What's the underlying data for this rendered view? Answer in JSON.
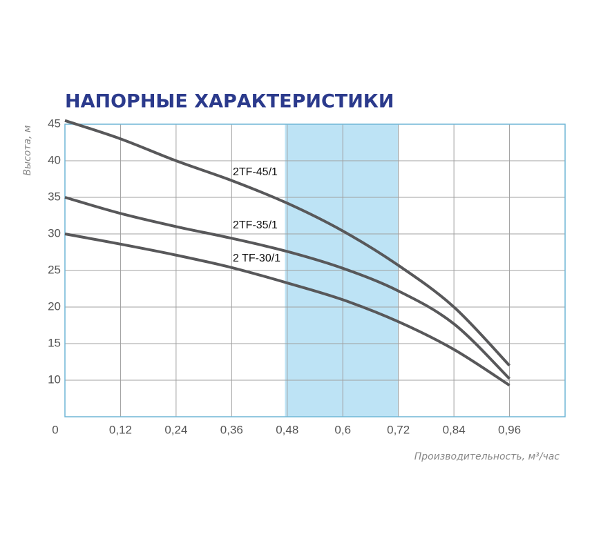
{
  "chart_data": {
    "type": "line",
    "title": "НАПОРНЫЕ ХАРАКТЕРИСТИКИ",
    "y_label": "Высота, м",
    "x_label": "Производительность, м³/час",
    "x": [
      0,
      0.12,
      0.24,
      0.36,
      0.48,
      0.6,
      0.72,
      0.84,
      0.96
    ],
    "series": [
      {
        "name": "2TF-45/1",
        "color": "#58585a",
        "values": [
          45.5,
          43,
          40,
          37.3,
          34.2,
          30.4,
          25.7,
          20,
          12
        ]
      },
      {
        "name": "2TF-35/1",
        "color": "#58585a",
        "values": [
          35,
          32.8,
          31,
          29.4,
          27.6,
          25.3,
          22.2,
          17.7,
          10.2
        ]
      },
      {
        "name": "2 TF-30/1",
        "color": "#58585a",
        "values": [
          30,
          28.6,
          27.1,
          25.4,
          23.3,
          21,
          18,
          14.2,
          9.3
        ]
      }
    ],
    "highlight_range": [
      0.475,
      0.72
    ],
    "highlight_color": "#bde3f5",
    "xlim": [
      0,
      1.08
    ],
    "ylim": [
      5,
      45
    ],
    "xticks": [
      0,
      {
        "value": 0.12,
        "label": "0,12"
      },
      {
        "value": 0.24,
        "label": "0,24"
      },
      {
        "value": 0.36,
        "label": "0,36"
      },
      {
        "value": 0.48,
        "label": "0,48"
      },
      {
        "value": 0.6,
        "label": "0,6"
      },
      {
        "value": 0.72,
        "label": "0,72"
      },
      {
        "value": 0.84,
        "label": "0,84"
      },
      {
        "value": 0.96,
        "label": "0,96"
      }
    ],
    "yticks": [
      10,
      15,
      20,
      25,
      30,
      35,
      40,
      45
    ],
    "grid": true
  }
}
